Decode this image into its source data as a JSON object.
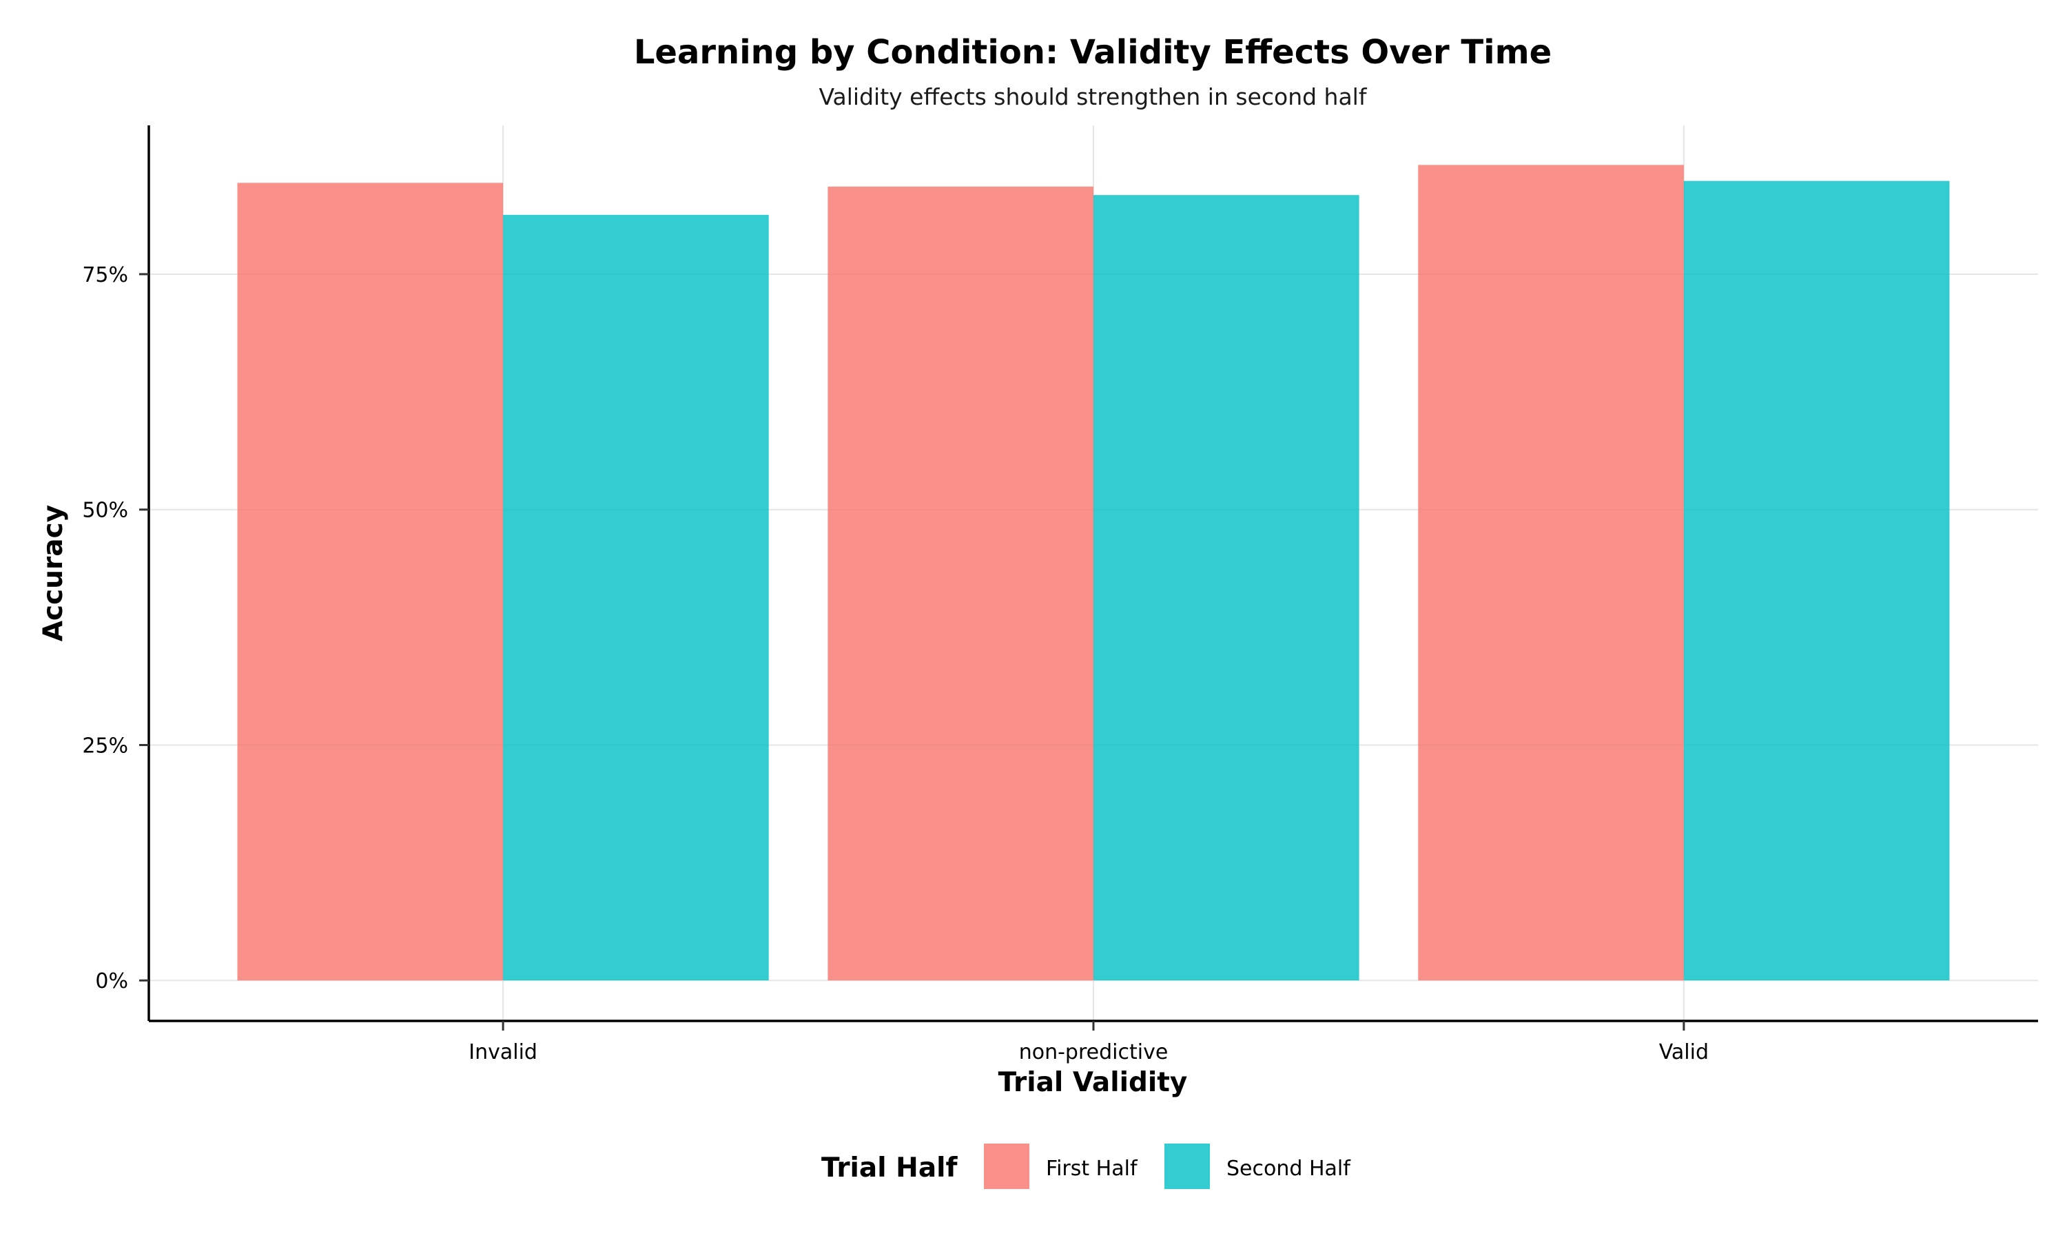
{
  "chart_data": {
    "type": "bar",
    "title": "Learning by Condition: Validity Effects Over Time",
    "subtitle": "Validity effects should strengthen in second half",
    "xlabel": "Trial Validity",
    "ylabel": "Accuracy",
    "categories": [
      "Invalid",
      "non-predictive",
      "Valid"
    ],
    "series": [
      {
        "name": "First Half",
        "values": [
          0.847,
          0.843,
          0.866
        ]
      },
      {
        "name": "Second Half",
        "values": [
          0.813,
          0.834,
          0.849
        ]
      }
    ],
    "ylim": [
      -0.043,
      0.908
    ],
    "yticks": [
      0,
      0.25,
      0.5,
      0.75
    ],
    "ytick_labels": [
      "0%",
      "25%",
      "50%",
      "75%"
    ],
    "grid": true,
    "legend": {
      "title": "Trial Half",
      "position": "bottom"
    },
    "colors": {
      "First Half": "#F8766D",
      "Second Half": "#00BFC4"
    },
    "bar_opacity": 0.8
  }
}
